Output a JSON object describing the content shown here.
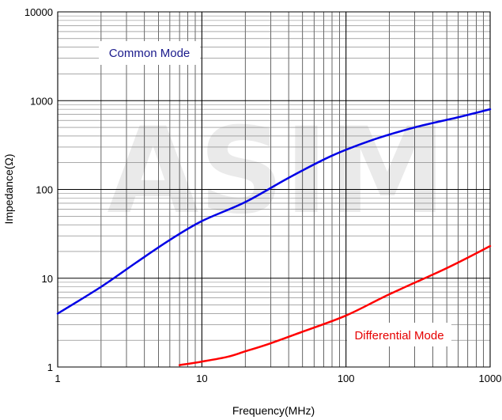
{
  "chart_data": {
    "type": "line",
    "x_scale": "log",
    "y_scale": "log",
    "xlabel": "Frequency(MHz)",
    "ylabel": "Impedance(Ω)",
    "xlim": [
      1,
      1000
    ],
    "ylim": [
      1,
      10000
    ],
    "x_ticks": [
      "1",
      "10",
      "100",
      "1000"
    ],
    "y_ticks": [
      "1",
      "10",
      "100",
      "1000",
      "10000"
    ],
    "grid": true,
    "watermark": "ASIM",
    "series": [
      {
        "name": "Common Mode",
        "color": "#0000e6",
        "x": [
          1,
          2,
          3.5,
          6,
          10,
          20,
          40,
          80,
          160,
          300,
          600,
          1000
        ],
        "y": [
          4,
          8,
          15,
          27,
          44,
          72,
          135,
          240,
          370,
          500,
          650,
          800
        ]
      },
      {
        "name": "Differential Mode",
        "color": "#ff0000",
        "x": [
          7,
          10,
          15,
          20,
          30,
          50,
          100,
          200,
          500,
          1000
        ],
        "y": [
          1.05,
          1.15,
          1.3,
          1.5,
          1.85,
          2.5,
          3.8,
          6.6,
          13,
          23
        ]
      }
    ],
    "annotations": [
      {
        "text": "Common Mode",
        "color": "#1a1a8c"
      },
      {
        "text": "Differential Mode",
        "color": "#e60000"
      }
    ]
  }
}
